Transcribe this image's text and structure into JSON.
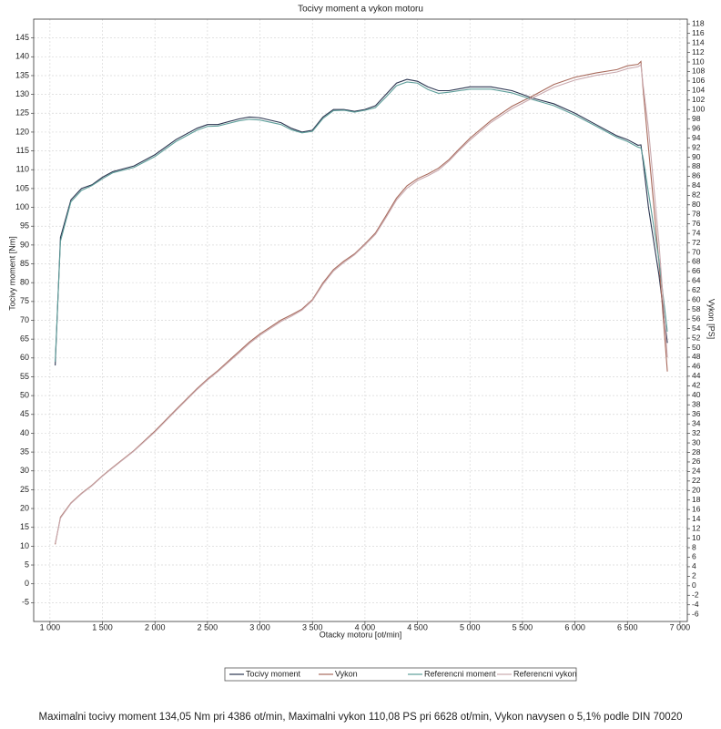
{
  "chart_data": {
    "type": "line",
    "title": "Tocivy moment a vykon motoru",
    "x_label": "Otacky motoru [ot/min]",
    "y_label": "Tocivy moment [Nm]",
    "y2_label": "Vykon [PS]",
    "caption": "Maximalni tocivy moment 134,05 Nm pri 4386 ot/min,  Maximalni vykon 110,08 PS pri 6628 ot/min,  Vykon navysen o 5,1% podle DIN 70020",
    "grid": true,
    "xlim": [
      845,
      7070
    ],
    "xticks": [
      {
        "value": 1000,
        "label": "1 000"
      },
      {
        "value": 1500,
        "label": "1 500"
      },
      {
        "value": 2000,
        "label": "2 000"
      },
      {
        "value": 2500,
        "label": "2 500"
      },
      {
        "value": 3000,
        "label": "3 000"
      },
      {
        "value": 3500,
        "label": "3 500"
      },
      {
        "value": 4000,
        "label": "4 000"
      },
      {
        "value": 4500,
        "label": "4 500"
      },
      {
        "value": 5000,
        "label": "5 000"
      },
      {
        "value": 5500,
        "label": "5 500"
      },
      {
        "value": 6000,
        "label": "6 000"
      },
      {
        "value": 6500,
        "label": "6 500"
      },
      {
        "value": 7000,
        "label": "7 000"
      }
    ],
    "ylim": [
      -10,
      150
    ],
    "yticks": [
      -5,
      0,
      5,
      10,
      15,
      20,
      25,
      30,
      35,
      40,
      45,
      50,
      55,
      60,
      65,
      70,
      75,
      80,
      85,
      90,
      95,
      100,
      105,
      110,
      115,
      120,
      125,
      130,
      135,
      140,
      145
    ],
    "y2lim": [
      -7.5,
      119
    ],
    "y2ticks": [
      -6,
      -4,
      -2,
      0,
      2,
      4,
      6,
      8,
      10,
      12,
      14,
      16,
      18,
      20,
      22,
      24,
      26,
      28,
      30,
      32,
      34,
      36,
      38,
      40,
      42,
      44,
      46,
      48,
      50,
      52,
      54,
      56,
      58,
      60,
      62,
      64,
      66,
      68,
      70,
      72,
      74,
      76,
      78,
      80,
      82,
      84,
      86,
      88,
      90,
      92,
      94,
      96,
      98,
      100,
      102,
      104,
      106,
      108,
      110,
      112,
      114,
      116,
      118
    ],
    "x": [
      1050,
      1100,
      1200,
      1300,
      1400,
      1500,
      1600,
      1800,
      2000,
      2200,
      2400,
      2500,
      2600,
      2800,
      2900,
      3000,
      3200,
      3300,
      3400,
      3500,
      3600,
      3700,
      3800,
      3900,
      4000,
      4100,
      4200,
      4300,
      4400,
      4500,
      4600,
      4700,
      4800,
      4900,
      5000,
      5200,
      5400,
      5600,
      5800,
      6000,
      6200,
      6400,
      6500,
      6600,
      6628,
      6650,
      6700,
      6800,
      6880
    ],
    "series": [
      {
        "name": "Tocivy moment",
        "color": "#2b3550",
        "axis": "y",
        "values": [
          58,
          92,
          102,
          105,
          106,
          108,
          109.5,
          111,
          114,
          118,
          121,
          122,
          122,
          123.5,
          124,
          123.8,
          122.5,
          121,
          120,
          120.5,
          124,
          126,
          126,
          125.5,
          126,
          127,
          130,
          133,
          134,
          133.5,
          132,
          131,
          131,
          131.5,
          132,
          132,
          131,
          129,
          127.5,
          125,
          122,
          119,
          118,
          116.5,
          116.6,
          112,
          100,
          82,
          64
        ]
      },
      {
        "name": "Vykon",
        "color": "#a86a5c",
        "axis": "y2",
        "values": [
          8.7,
          14.4,
          17.4,
          19.4,
          21.1,
          23.1,
          24.9,
          28.4,
          32.5,
          37.0,
          41.4,
          43.4,
          45.2,
          49.2,
          51.2,
          52.9,
          55.8,
          56.9,
          58.1,
          60.1,
          63.6,
          66.4,
          68.2,
          69.7,
          71.8,
          74.1,
          77.7,
          81.4,
          84.0,
          85.5,
          86.5,
          87.7,
          89.5,
          91.8,
          94.0,
          97.7,
          100.7,
          102.9,
          105.3,
          106.8,
          107.7,
          108.4,
          109.2,
          109.5,
          110.1,
          104,
          92,
          68,
          45
        ]
      },
      {
        "name": "Referencni moment",
        "color": "#5e9e9a",
        "axis": "y",
        "values": [
          59,
          91,
          101.5,
          104.5,
          105.8,
          107.6,
          109.2,
          110.6,
          113.5,
          117.5,
          120.5,
          121.5,
          121.6,
          123,
          123.4,
          123.2,
          122,
          120.6,
          119.8,
          120.2,
          123.6,
          125.7,
          125.8,
          125.3,
          125.8,
          126.5,
          129.3,
          132.3,
          133.3,
          133,
          131.3,
          130.3,
          130.6,
          131,
          131.4,
          131.4,
          130.4,
          128.6,
          127,
          124.5,
          121.6,
          118.6,
          117.5,
          116,
          115.8,
          113,
          104,
          86,
          67
        ]
      },
      {
        "name": "Referencni vykon",
        "color": "#c9a9ae",
        "axis": "y2",
        "values": [
          8.9,
          14.2,
          17.3,
          19.3,
          21.0,
          23.0,
          24.8,
          28.3,
          32.3,
          36.8,
          41.2,
          43.2,
          45.0,
          48.9,
          50.9,
          52.6,
          55.5,
          56.6,
          57.9,
          59.9,
          63.3,
          66.1,
          67.9,
          69.5,
          71.6,
          73.8,
          77.3,
          81.0,
          83.5,
          85.1,
          86.1,
          87.3,
          89.2,
          91.5,
          93.6,
          97.3,
          100.2,
          102.5,
          104.7,
          106.2,
          107.2,
          107.9,
          108.6,
          109.0,
          109.4,
          105,
          96,
          72,
          48
        ]
      }
    ]
  }
}
